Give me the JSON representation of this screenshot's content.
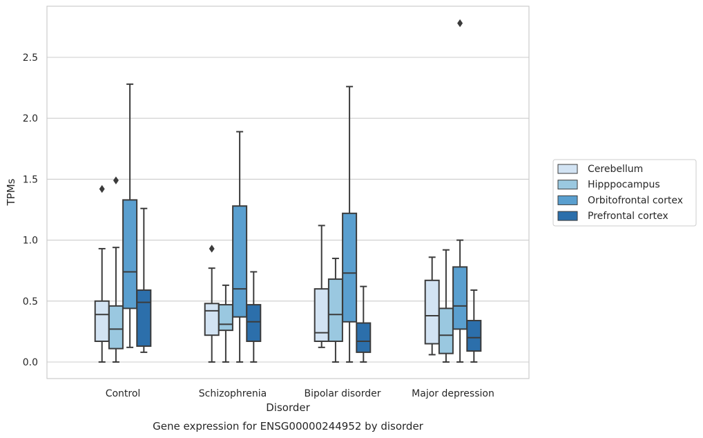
{
  "chart_data": {
    "type": "box",
    "caption": "Gene expression for ENSG00000244952 by disorder",
    "xlabel": "Disorder",
    "ylabel": "TPMs",
    "ylim": [
      -0.13,
      2.92
    ],
    "yticks": [
      0.0,
      0.5,
      1.0,
      1.5,
      2.0,
      2.5
    ],
    "grid": true,
    "legend_position": "right",
    "categories": [
      "Control",
      "Schizophrenia",
      "Bipolar disorder",
      "Major depression"
    ],
    "series": [
      {
        "name": "Cerebellum",
        "color": "#d2e3f3",
        "boxes": [
          {
            "min": 0.0,
            "q1": 0.17,
            "median": 0.39,
            "q3": 0.5,
            "max": 0.93,
            "outliers": [
              1.42
            ]
          },
          {
            "min": 0.0,
            "q1": 0.22,
            "median": 0.42,
            "q3": 0.48,
            "max": 0.77,
            "outliers": [
              0.93
            ]
          },
          {
            "min": 0.12,
            "q1": 0.17,
            "median": 0.24,
            "q3": 0.6,
            "max": 1.12,
            "outliers": []
          },
          {
            "min": 0.06,
            "q1": 0.15,
            "median": 0.38,
            "q3": 0.67,
            "max": 0.86,
            "outliers": []
          }
        ]
      },
      {
        "name": "Hipppocampus",
        "color": "#9ac8e0",
        "boxes": [
          {
            "min": 0.0,
            "q1": 0.11,
            "median": 0.27,
            "q3": 0.46,
            "max": 0.94,
            "outliers": [
              1.49
            ]
          },
          {
            "min": 0.0,
            "q1": 0.26,
            "median": 0.31,
            "q3": 0.47,
            "max": 0.63,
            "outliers": []
          },
          {
            "min": 0.0,
            "q1": 0.17,
            "median": 0.39,
            "q3": 0.68,
            "max": 0.85,
            "outliers": []
          },
          {
            "min": 0.0,
            "q1": 0.07,
            "median": 0.22,
            "q3": 0.44,
            "max": 0.92,
            "outliers": []
          }
        ]
      },
      {
        "name": "Orbitofrontal cortex",
        "color": "#5a9fcf",
        "boxes": [
          {
            "min": 0.12,
            "q1": 0.44,
            "median": 0.74,
            "q3": 1.33,
            "max": 2.28,
            "outliers": []
          },
          {
            "min": 0.0,
            "q1": 0.37,
            "median": 0.6,
            "q3": 1.28,
            "max": 1.89,
            "outliers": []
          },
          {
            "min": 0.0,
            "q1": 0.33,
            "median": 0.73,
            "q3": 1.22,
            "max": 2.26,
            "outliers": []
          },
          {
            "min": 0.0,
            "q1": 0.27,
            "median": 0.46,
            "q3": 0.78,
            "max": 1.0,
            "outliers": [
              2.78
            ]
          }
        ]
      },
      {
        "name": "Prefrontal cortex",
        "color": "#2c6fab",
        "boxes": [
          {
            "min": 0.08,
            "q1": 0.13,
            "median": 0.49,
            "q3": 0.59,
            "max": 1.26,
            "outliers": []
          },
          {
            "min": 0.0,
            "q1": 0.17,
            "median": 0.33,
            "q3": 0.47,
            "max": 0.74,
            "outliers": []
          },
          {
            "min": 0.0,
            "q1": 0.08,
            "median": 0.17,
            "q3": 0.32,
            "max": 0.62,
            "outliers": []
          },
          {
            "min": 0.0,
            "q1": 0.09,
            "median": 0.2,
            "q3": 0.34,
            "max": 0.59,
            "outliers": []
          }
        ]
      }
    ]
  }
}
